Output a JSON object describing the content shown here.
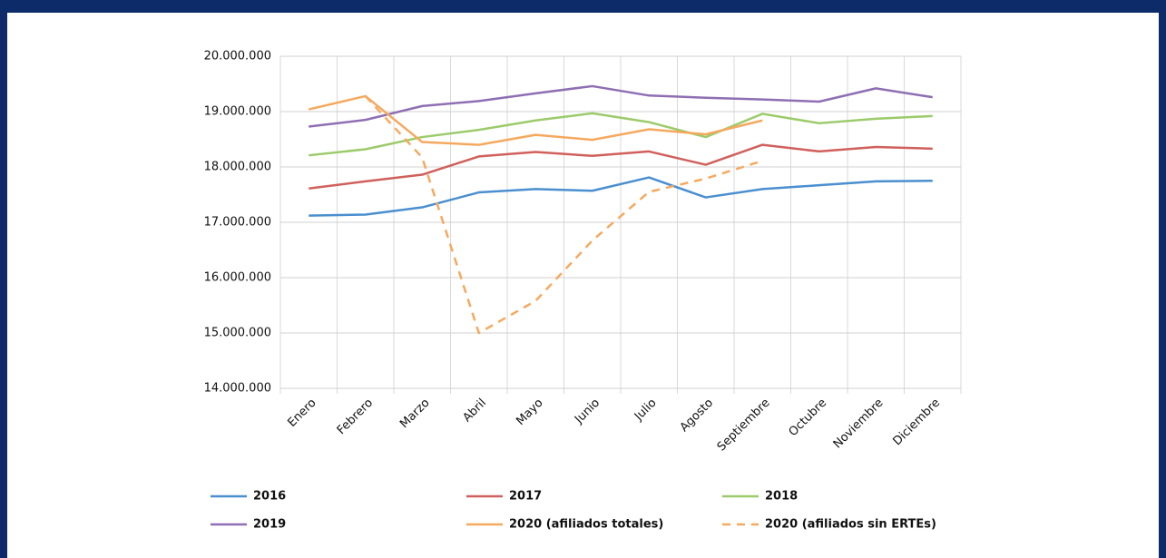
{
  "chart_data": {
    "type": "line",
    "categories": [
      "Enero",
      "Febrero",
      "Marzo",
      "Abril",
      "Mayo",
      "Junio",
      "Julio",
      "Agosto",
      "Septiembre",
      "Octubre",
      "Noviembre",
      "Diciembre"
    ],
    "ylim": [
      14000000,
      20000000
    ],
    "yticks": [
      {
        "value": 14000000,
        "label": "14.000.000"
      },
      {
        "value": 15000000,
        "label": "15.000.000"
      },
      {
        "value": 16000000,
        "label": "16.000.000"
      },
      {
        "value": 17000000,
        "label": "17.000.000"
      },
      {
        "value": 18000000,
        "label": "18.000.000"
      },
      {
        "value": 19000000,
        "label": "19.000.000"
      },
      {
        "value": 20000000,
        "label": "20.000.000"
      }
    ],
    "grid": true,
    "series": [
      {
        "name": "2016",
        "color": "#4a8fcf",
        "values": [
          17120000,
          17140000,
          17270000,
          17540000,
          17600000,
          17570000,
          17810000,
          17450000,
          17600000,
          17670000,
          17740000,
          17750000
        ]
      },
      {
        "name": "2017",
        "color": "#d0605c",
        "values": [
          17610000,
          17740000,
          17860000,
          18190000,
          18270000,
          18200000,
          18280000,
          18040000,
          18400000,
          18280000,
          18360000,
          18330000
        ]
      },
      {
        "name": "2018",
        "color": "#9bcb6a",
        "values": [
          18210000,
          18320000,
          18540000,
          18670000,
          18840000,
          18970000,
          18810000,
          18540000,
          18960000,
          18790000,
          18870000,
          18920000
        ]
      },
      {
        "name": "2019",
        "color": "#8e6fb3",
        "values": [
          18730000,
          18850000,
          19100000,
          19190000,
          19330000,
          19460000,
          19290000,
          19250000,
          19220000,
          19180000,
          19420000,
          19260000
        ]
      },
      {
        "name": "2020 (afiliados totales)",
        "color": "#f5a95f",
        "values": [
          19040000,
          19280000,
          18450000,
          18400000,
          18580000,
          18490000,
          18680000,
          18590000,
          18840000,
          null,
          null,
          null
        ]
      },
      {
        "name": "2020 (afiliados sin ERTEs)",
        "color": "#f5a95f",
        "dashed": true,
        "values": [
          null,
          19280000,
          18170000,
          15000000,
          15580000,
          16670000,
          17550000,
          17790000,
          18110000,
          null,
          null,
          null
        ]
      }
    ]
  }
}
